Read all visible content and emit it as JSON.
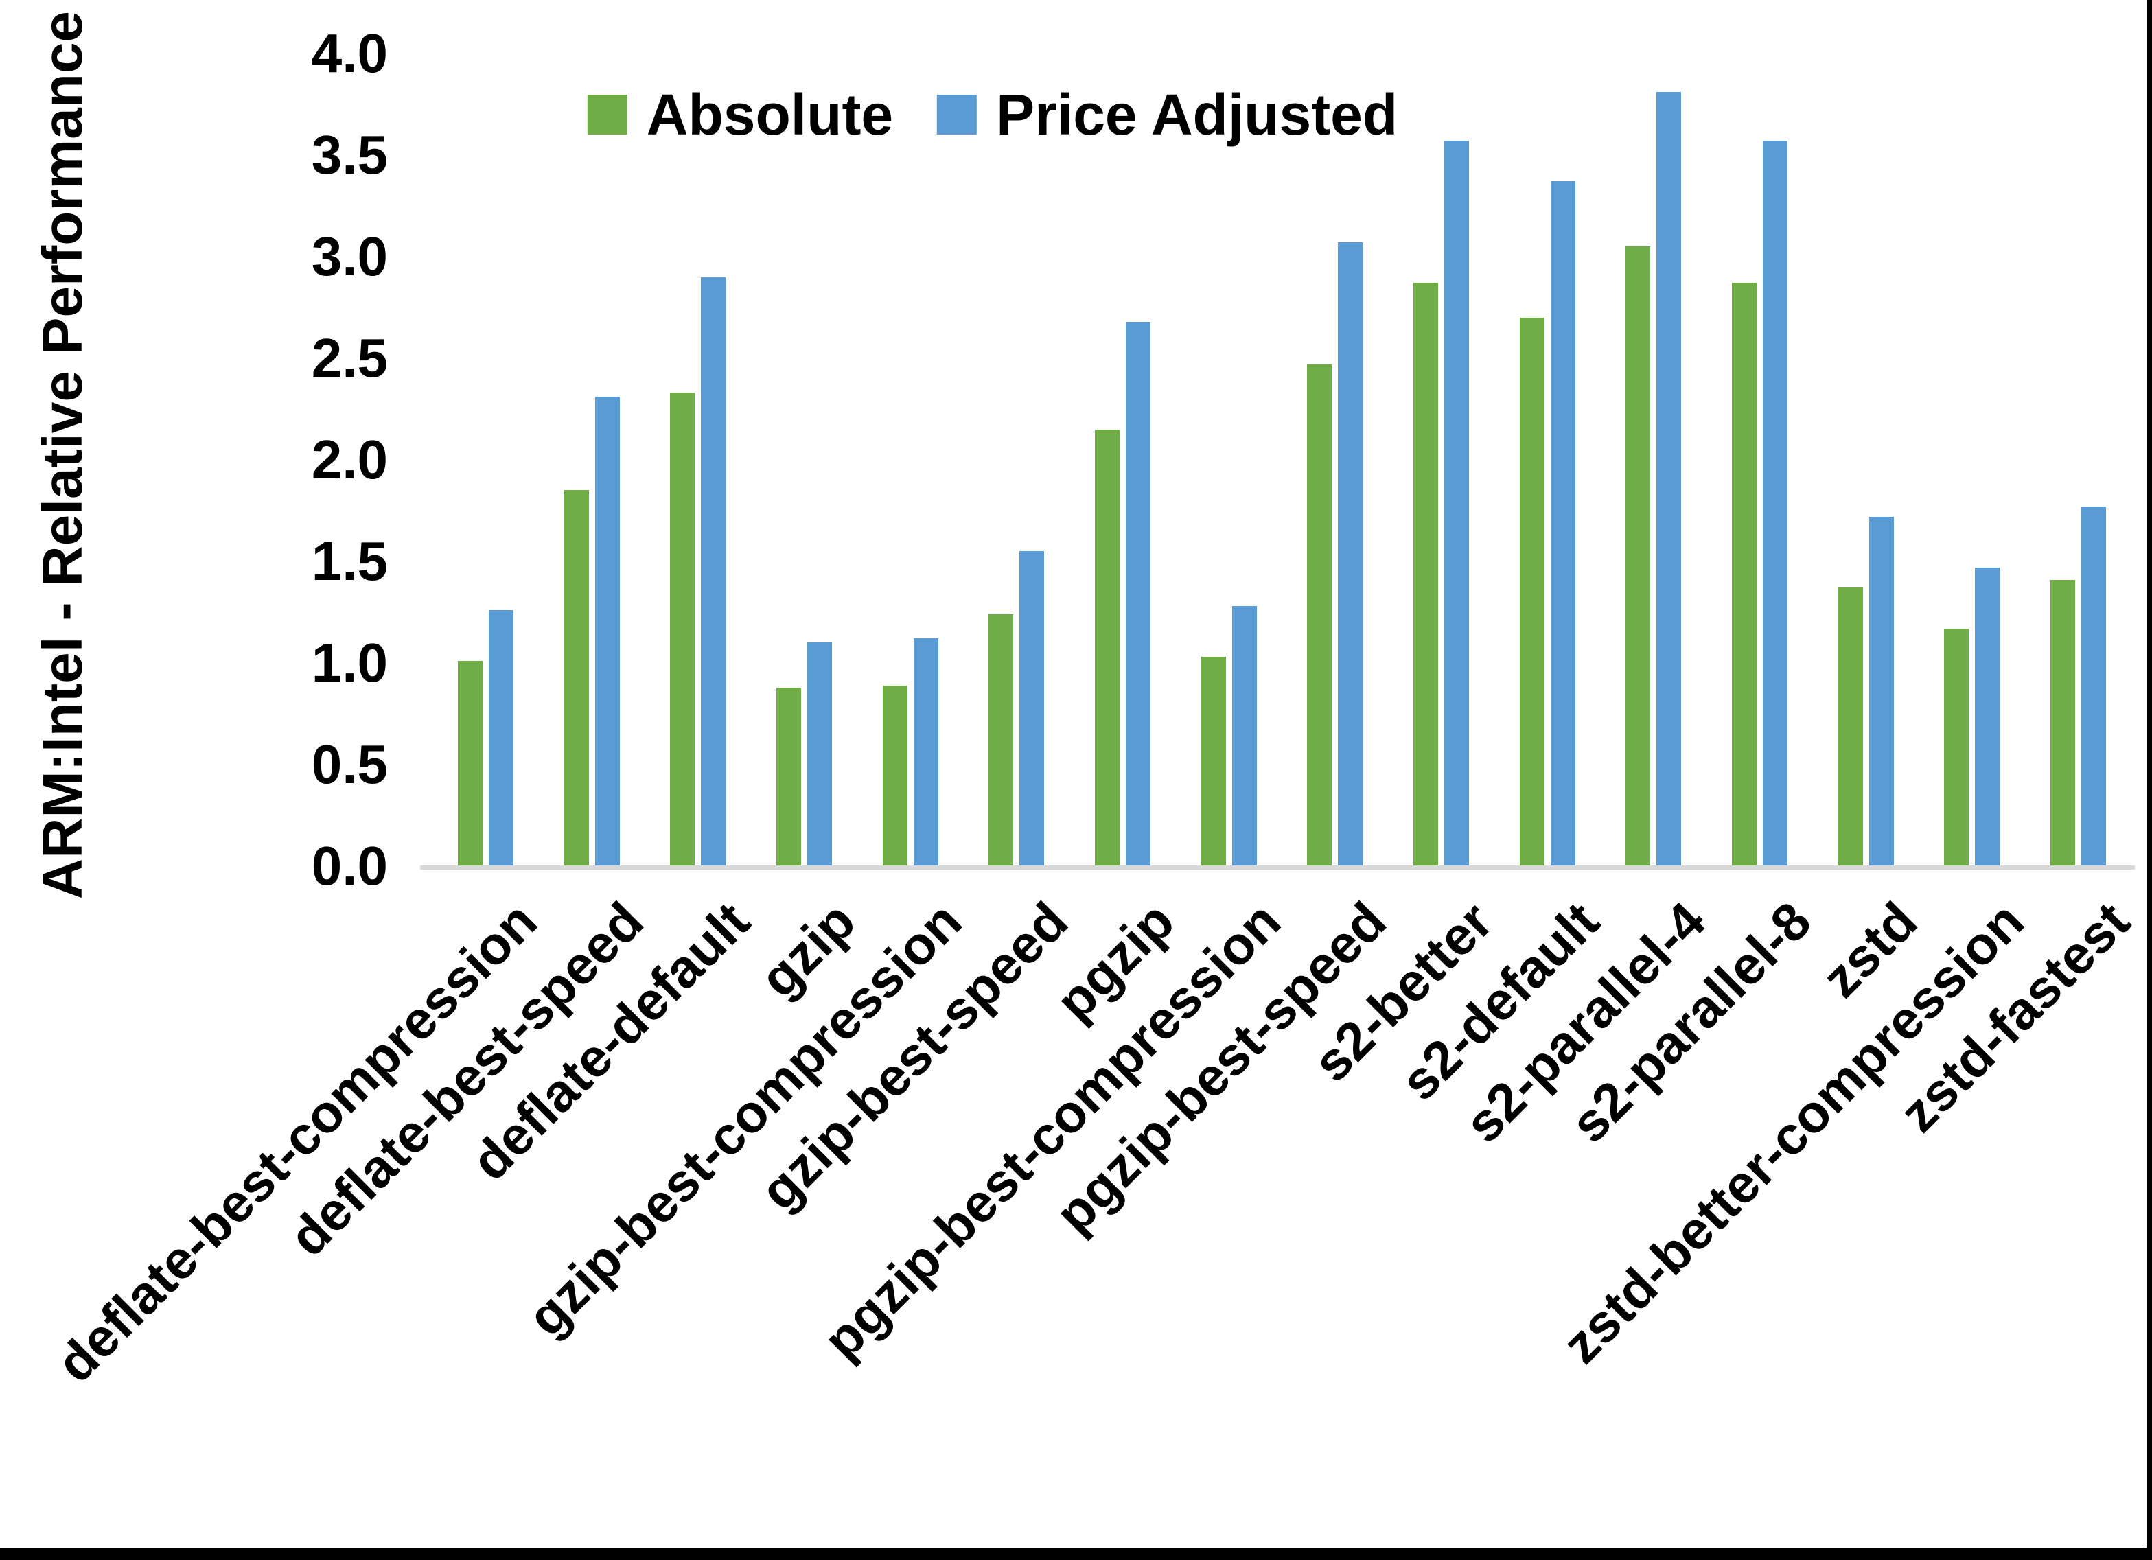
{
  "figure": {
    "background": "#FFFFFF",
    "text_color": "#000000",
    "axis_line_color": "#D9D9D9",
    "border_right_color": "#000000",
    "border_bottom_color": "#000000"
  },
  "chart_data": {
    "type": "bar",
    "title": "",
    "xlabel": "",
    "ylabel": "ARM:Intel - Relative Performance",
    "ylim": [
      0.0,
      4.0
    ],
    "ytick_labels": [
      "0.0",
      "0.5",
      "1.0",
      "1.5",
      "2.0",
      "2.5",
      "3.0",
      "3.5",
      "4.0"
    ],
    "grid": false,
    "legend_position": "top-center",
    "categories": [
      "deflate-best-compression",
      "deflate-best-speed",
      "deflate-default",
      "gzip",
      "gzip-best-compression",
      "gzip-best-speed",
      "pgzip",
      "pgzip-best-compression",
      "pgzip-best-speed",
      "s2-better",
      "s2-default",
      "s2-parallel-4",
      "s2-parallel-8",
      "zstd",
      "zstd-better-compression",
      "zstd-fastest"
    ],
    "series": [
      {
        "name": "Absolute",
        "color": "#70AD47",
        "values": [
          1.01,
          1.85,
          2.33,
          0.88,
          0.89,
          1.24,
          2.15,
          1.03,
          2.47,
          2.87,
          2.7,
          3.05,
          2.87,
          1.37,
          1.17,
          1.41
        ]
      },
      {
        "name": "Price Adjusted",
        "color": "#5B9BD5",
        "values": [
          1.26,
          2.31,
          2.9,
          1.1,
          1.12,
          1.55,
          2.68,
          1.28,
          3.07,
          3.57,
          3.37,
          3.81,
          3.57,
          1.72,
          1.47,
          1.77
        ]
      }
    ]
  }
}
